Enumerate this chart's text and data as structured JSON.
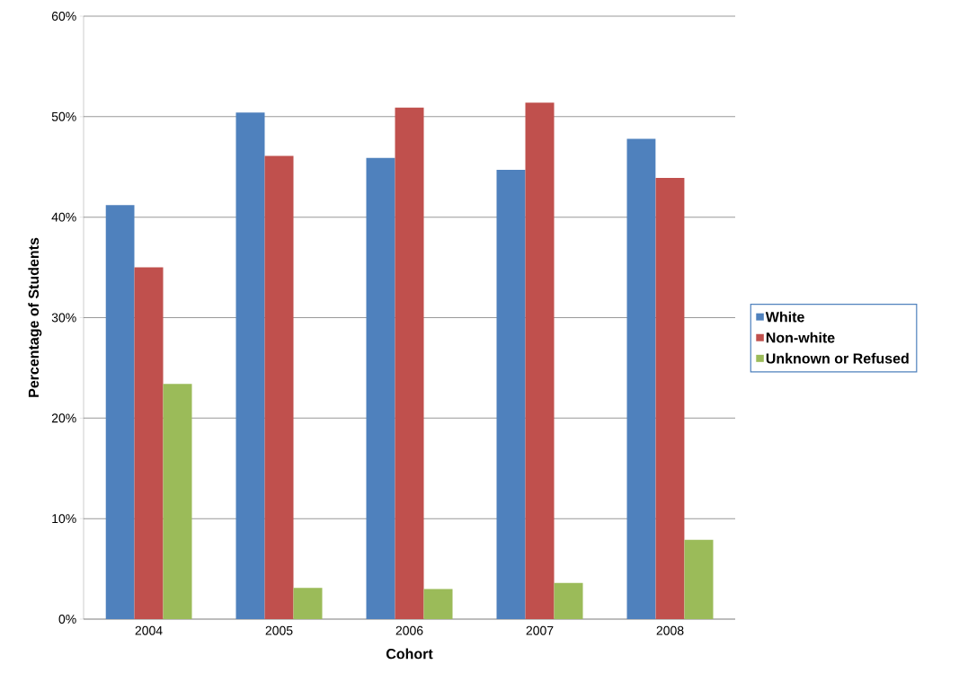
{
  "chart_data": {
    "type": "bar",
    "xlabel": "Cohort",
    "ylabel": "Percentage of Students",
    "categories": [
      "2004",
      "2005",
      "2006",
      "2007",
      "2008"
    ],
    "series": [
      {
        "name": "White",
        "color": "#4f81bd",
        "values": [
          41.2,
          50.4,
          45.9,
          44.7,
          47.8
        ]
      },
      {
        "name": "Non-white",
        "color": "#c0504d",
        "values": [
          35.0,
          46.1,
          50.9,
          51.4,
          43.9
        ]
      },
      {
        "name": "Unknown or Refused",
        "color": "#9bbb59",
        "values": [
          23.4,
          3.1,
          3.0,
          3.6,
          7.9
        ]
      }
    ],
    "ylim": [
      0,
      60
    ],
    "yticks": [
      {
        "value": 0,
        "label": "0%"
      },
      {
        "value": 10,
        "label": "10%"
      },
      {
        "value": 20,
        "label": "20%"
      },
      {
        "value": 30,
        "label": "30%"
      },
      {
        "value": 40,
        "label": "40%"
      },
      {
        "value": 50,
        "label": "50%"
      },
      {
        "value": 60,
        "label": "60%"
      }
    ],
    "grid": "y",
    "legend": "right"
  }
}
